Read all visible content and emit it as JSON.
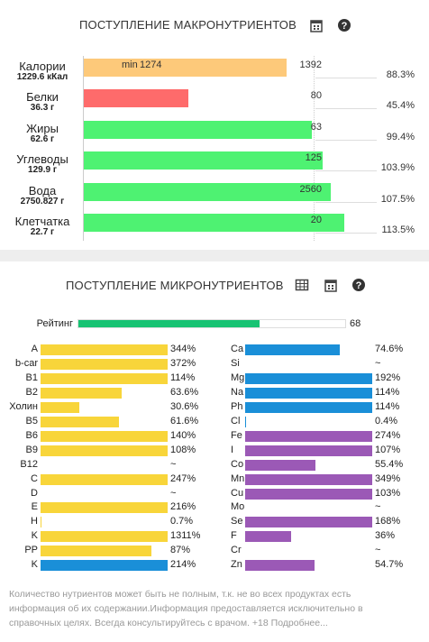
{
  "macro": {
    "title": "ПОСТУПЛЕНИЕ МАКРОНУТРИЕНТОВ",
    "rows": [
      {
        "name": "Калории",
        "amount": "1229.6 кКал",
        "percent": 88.3,
        "percent_label": "88.3%",
        "target": "1392",
        "min_label": "min",
        "min": "1274",
        "color": "#fdc97a"
      },
      {
        "name": "Белки",
        "amount": "36.3 г",
        "percent": 45.4,
        "percent_label": "45.4%",
        "target": "80",
        "color": "#fe6b6b"
      },
      {
        "name": "Жиры",
        "amount": "62.6 г",
        "percent": 99.4,
        "percent_label": "99.4%",
        "target": "63",
        "color": "#4ef272"
      },
      {
        "name": "Углеводы",
        "amount": "129.9 г",
        "percent": 103.9,
        "percent_label": "103.9%",
        "target": "125",
        "color": "#4ef272"
      },
      {
        "name": "Вода",
        "amount": "2750.827 г",
        "percent": 107.5,
        "percent_label": "107.5%",
        "target": "2560",
        "color": "#4ef272"
      },
      {
        "name": "Клетчатка",
        "amount": "22.7 г",
        "percent": 113.5,
        "percent_label": "113.5%",
        "target": "20",
        "color": "#4ef272"
      }
    ]
  },
  "micro": {
    "title": "ПОСТУПЛЕНИЕ МИКРОНУТРИЕНТОВ",
    "rating": {
      "label": "Рейтинг",
      "value": 68,
      "color": "#17c373"
    },
    "left": [
      {
        "name": "A",
        "value": 344,
        "label": "344%",
        "color": "#f8d53a"
      },
      {
        "name": "b-car",
        "value": 372,
        "label": "372%",
        "color": "#f8d53a"
      },
      {
        "name": "B1",
        "value": 114,
        "label": "114%",
        "color": "#f8d53a"
      },
      {
        "name": "B2",
        "value": 63.6,
        "label": "63.6%",
        "color": "#f8d53a"
      },
      {
        "name": "Холин",
        "value": 30.6,
        "label": "30.6%",
        "color": "#f8d53a"
      },
      {
        "name": "B5",
        "value": 61.6,
        "label": "61.6%",
        "color": "#f8d53a"
      },
      {
        "name": "B6",
        "value": 140,
        "label": "140%",
        "color": "#f8d53a"
      },
      {
        "name": "B9",
        "value": 108,
        "label": "108%",
        "color": "#f8d53a"
      },
      {
        "name": "B12",
        "value": null,
        "label": "~",
        "color": "#f8d53a"
      },
      {
        "name": "C",
        "value": 247,
        "label": "247%",
        "color": "#f8d53a"
      },
      {
        "name": "D",
        "value": null,
        "label": "~",
        "color": "#f8d53a"
      },
      {
        "name": "E",
        "value": 216,
        "label": "216%",
        "color": "#f8d53a"
      },
      {
        "name": "H",
        "value": 0.7,
        "label": "0.7%",
        "color": "#f8d53a"
      },
      {
        "name": "K",
        "value": 1311,
        "label": "1311%",
        "color": "#f8d53a"
      },
      {
        "name": "PP",
        "value": 87,
        "label": "87%",
        "color": "#f8d53a"
      },
      {
        "name": "K",
        "value": 214,
        "label": "214%",
        "color": "#1a8fd8"
      }
    ],
    "right": [
      {
        "name": "Ca",
        "value": 74.6,
        "label": "74.6%",
        "color": "#1a8fd8"
      },
      {
        "name": "Si",
        "value": null,
        "label": "~",
        "color": "#1a8fd8"
      },
      {
        "name": "Mg",
        "value": 192,
        "label": "192%",
        "color": "#1a8fd8"
      },
      {
        "name": "Na",
        "value": 114,
        "label": "114%",
        "color": "#1a8fd8"
      },
      {
        "name": "Ph",
        "value": 114,
        "label": "114%",
        "color": "#1a8fd8"
      },
      {
        "name": "Cl",
        "value": 0.4,
        "label": "0.4%",
        "color": "#1a8fd8"
      },
      {
        "name": "Fe",
        "value": 274,
        "label": "274%",
        "color": "#9b59b6"
      },
      {
        "name": "I",
        "value": 107,
        "label": "107%",
        "color": "#9b59b6"
      },
      {
        "name": "Co",
        "value": 55.4,
        "label": "55.4%",
        "color": "#9b59b6"
      },
      {
        "name": "Mn",
        "value": 349,
        "label": "349%",
        "color": "#9b59b6"
      },
      {
        "name": "Cu",
        "value": 103,
        "label": "103%",
        "color": "#9b59b6"
      },
      {
        "name": "Mo",
        "value": null,
        "label": "~",
        "color": "#9b59b6"
      },
      {
        "name": "Se",
        "value": 168,
        "label": "168%",
        "color": "#9b59b6"
      },
      {
        "name": "F",
        "value": 36,
        "label": "36%",
        "color": "#9b59b6"
      },
      {
        "name": "Cr",
        "value": null,
        "label": "~",
        "color": "#9b59b6"
      },
      {
        "name": "Zn",
        "value": 54.7,
        "label": "54.7%",
        "color": "#9b59b6"
      }
    ],
    "footer": "Количество нутриентов может быть не полным, т.к. не во всех продуктах есть информация об их содержании.Информация предоставляется исключительно в справочных целях. Всегда консультируйтесь с врачом. +18 Подробнее..."
  }
}
